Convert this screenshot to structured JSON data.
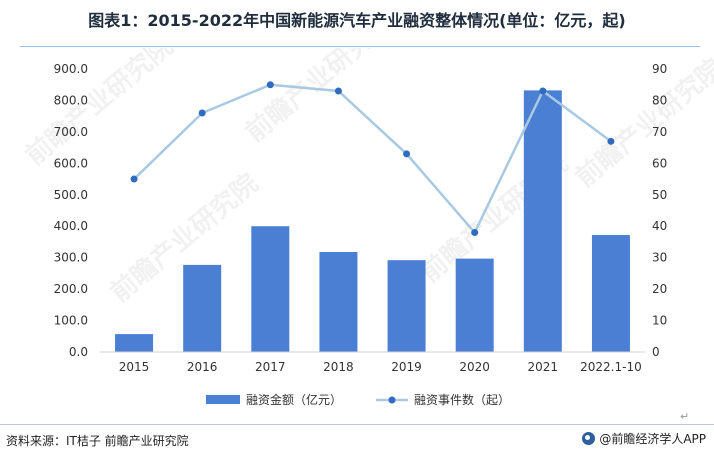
{
  "title": "图表1：2015-2022年中国新能源汽车产业融资整体情况(单位：亿元，起)",
  "source": "资料来源：IT桔子 前瞻产业研究院",
  "brand": "@前瞻经济学人APP",
  "watermark": "前瞻产业研究院",
  "colors": {
    "bar": "#4a7fd4",
    "line": "#a9c9e3",
    "marker": "#2f6cc0"
  },
  "chart_data": {
    "type": "bar",
    "categories": [
      "2015",
      "2016",
      "2017",
      "2018",
      "2019",
      "2020",
      "2021",
      "2022.1-10"
    ],
    "series": [
      {
        "name": "融资金额（亿元）",
        "type": "bar",
        "axis": "left",
        "values": [
          57,
          277,
          400,
          318,
          292,
          297,
          832,
          372
        ]
      },
      {
        "name": "融资事件数（起）",
        "type": "line",
        "axis": "right",
        "values": [
          55,
          76,
          85,
          83,
          63,
          38,
          83,
          67
        ]
      }
    ],
    "y_left": {
      "min": 0,
      "max": 900,
      "step": 100,
      "ticks": [
        "0.0",
        "100.0",
        "200.0",
        "300.0",
        "400.0",
        "500.0",
        "600.0",
        "700.0",
        "800.0",
        "900.0"
      ]
    },
    "y_right": {
      "min": 0,
      "max": 90,
      "step": 10,
      "ticks": [
        "0",
        "10",
        "20",
        "30",
        "40",
        "50",
        "60",
        "70",
        "80",
        "90"
      ]
    },
    "grid": false,
    "legend": "bottom-center"
  }
}
